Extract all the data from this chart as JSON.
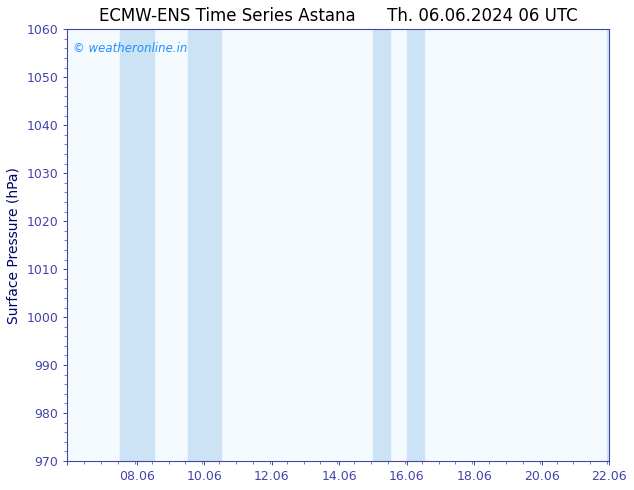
{
  "title_left": "ECMW-ENS Time Series Astana",
  "title_right": "Th. 06.06.2024 06 UTC",
  "ylabel": "Surface Pressure (hPa)",
  "ylim": [
    970,
    1060
  ],
  "yticks": [
    970,
    980,
    990,
    1000,
    1010,
    1020,
    1030,
    1040,
    1050,
    1060
  ],
  "xlim_min": 6.0,
  "xlim_max": 22.06,
  "xticks": [
    6.0,
    8.06,
    10.06,
    12.06,
    14.06,
    16.06,
    18.06,
    20.06,
    22.06
  ],
  "xticklabels": [
    "",
    "08.06",
    "10.06",
    "12.06",
    "14.06",
    "16.06",
    "18.06",
    "20.06",
    "22.06"
  ],
  "shaded_bands": [
    {
      "xmin": 7.56,
      "xmax": 8.56
    },
    {
      "xmin": 9.56,
      "xmax": 10.56
    },
    {
      "xmin": 15.06,
      "xmax": 15.56
    },
    {
      "xmin": 16.06,
      "xmax": 16.56
    },
    {
      "xmin": 22.0,
      "xmax": 22.06
    }
  ],
  "band_color": "#cce3f5",
  "plot_bg_color": "#f5faff",
  "fig_bg_color": "#ffffff",
  "border_color": "#4444aa",
  "tick_color": "#4444aa",
  "watermark_text": "© weatheronline.in",
  "watermark_color": "#1e90ff",
  "title_fontsize": 12,
  "axis_label_fontsize": 10,
  "tick_fontsize": 9,
  "ylabel_color": "#000066"
}
